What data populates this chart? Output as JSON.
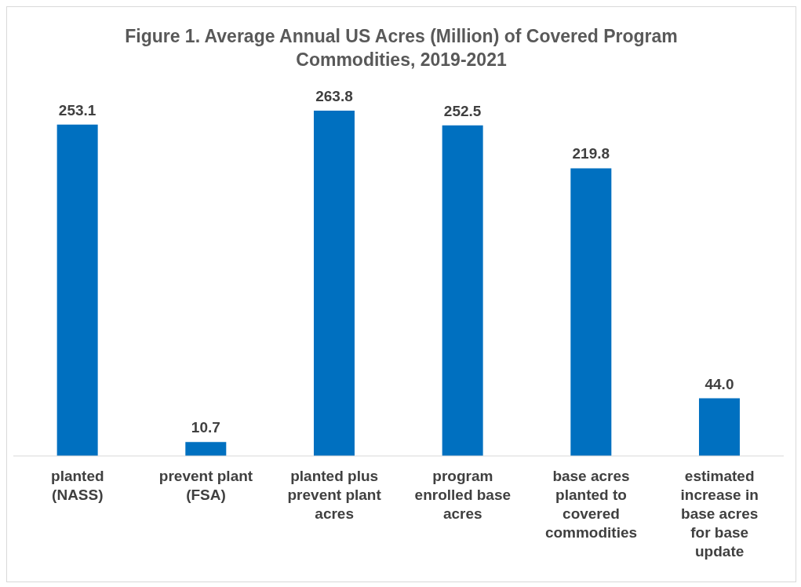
{
  "chart_data": {
    "type": "bar",
    "title": "Figure 1. Average Annual US Acres (Million) of Covered Program Commodities, 2019-2021",
    "categories": [
      "planted (NASS)",
      "prevent plant (FSA)",
      "planted plus prevent plant acres",
      "program enrolled base acres",
      "base acres planted to covered commodities",
      "estimated increase in base acres for base update"
    ],
    "values": [
      253.1,
      10.7,
      263.8,
      252.5,
      219.8,
      44.0
    ],
    "value_labels": [
      "253.1",
      "10.7",
      "263.8",
      "252.5",
      "219.8",
      "44.0"
    ],
    "color": "#0070c0"
  }
}
